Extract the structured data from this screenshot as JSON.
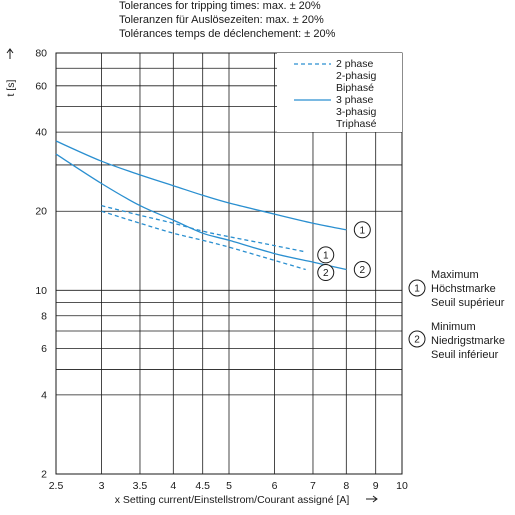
{
  "tolerance_notes": [
    "Tolerances for tripping times: max. ± 20%",
    "Toleranzen für Auslösezeiten: max. ± 20%",
    "Tolérances temps de déclenchement: ± 20%"
  ],
  "side_legend": [
    {
      "marker": "1",
      "lines": [
        "Maximum",
        "Höchstmarke",
        "Seuil supérieur"
      ]
    },
    {
      "marker": "2",
      "lines": [
        "Minimum",
        "Niedrigstmarke",
        "Seuil inférieur"
      ]
    }
  ],
  "colors": {
    "curve": "#2a8fd0",
    "grid": "#1a1a1a",
    "text": "#1a1a1a"
  },
  "chart_data": {
    "type": "line",
    "title": "",
    "xlabel": "x Setting current/Einstellstrom/Courant assigné [A]",
    "ylabel": "t [s]",
    "x_scale": "log",
    "y_scale": "log",
    "xlim": [
      2.5,
      10
    ],
    "ylim": [
      2,
      80
    ],
    "x_ticks": [
      2.5,
      3,
      3.5,
      4,
      4.5,
      5,
      6,
      7,
      8,
      9,
      10
    ],
    "x_tick_labels": [
      "2.5",
      "3",
      "3.5",
      "4",
      "4.5",
      "5",
      "6",
      "7",
      "8",
      "9",
      "10"
    ],
    "y_grid": [
      2,
      4,
      5,
      6,
      7,
      8,
      9,
      10,
      20,
      30,
      40,
      50,
      60,
      70,
      80
    ],
    "y_ticks": [
      2,
      4,
      6,
      8,
      10,
      20,
      40,
      60,
      80
    ],
    "y_tick_labels": [
      "2",
      "4",
      "6",
      "8",
      "10",
      "20",
      "40",
      "60",
      "80"
    ],
    "grid": true,
    "legend": {
      "placement": "top-right",
      "entries": [
        {
          "style": "dashed",
          "lines": [
            "2 phase",
            "2-phasig",
            "Biphasé"
          ]
        },
        {
          "style": "solid",
          "lines": [
            "3 phase",
            "3-phasig",
            "Triphasé"
          ]
        }
      ]
    },
    "series": [
      {
        "style": "solid",
        "marker": "1",
        "x": [
          2.5,
          3,
          3.5,
          4,
          4.5,
          5,
          6,
          7,
          8
        ],
        "y": [
          37,
          31,
          27.5,
          25,
          23,
          21.5,
          19.5,
          18,
          17
        ]
      },
      {
        "style": "solid",
        "marker": "2",
        "x": [
          2.5,
          3,
          3.5,
          4,
          4.5,
          5,
          6,
          7,
          8
        ],
        "y": [
          33,
          25.5,
          21,
          18.5,
          16.5,
          15.5,
          13.8,
          12.8,
          12
        ]
      },
      {
        "style": "dashed",
        "marker": "1",
        "x": [
          3,
          3.5,
          4,
          4.5,
          5,
          6,
          6.8
        ],
        "y": [
          21,
          19.3,
          18,
          16.8,
          16,
          14.8,
          14
        ]
      },
      {
        "style": "dashed",
        "marker": "2",
        "x": [
          3,
          3.5,
          4,
          4.5,
          5,
          6,
          6.8
        ],
        "y": [
          20,
          18,
          16.5,
          15.5,
          14.6,
          13,
          12
        ]
      }
    ]
  }
}
